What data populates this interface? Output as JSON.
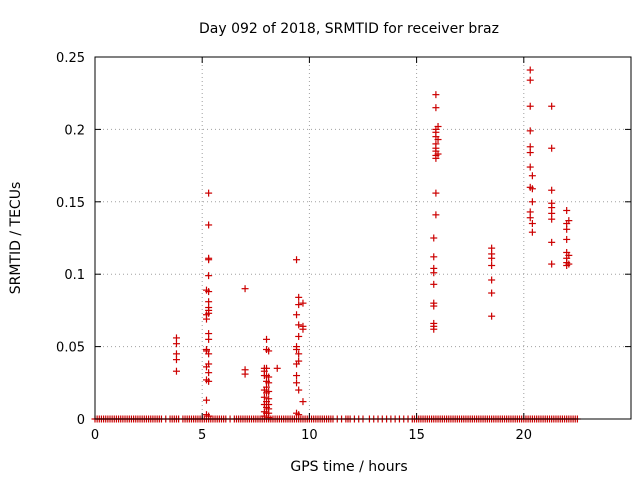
{
  "chart_data": {
    "type": "scatter",
    "title": "Day 092 of 2018, SRMTID for receiver braz",
    "xlabel": "GPS time / hours",
    "ylabel": "SRMTID / TECUs",
    "xlim": [
      0,
      25
    ],
    "ylim": [
      0,
      0.25
    ],
    "grid": true,
    "marker": "+",
    "color": "#cc0000",
    "x_ticks": [
      0,
      5,
      10,
      15,
      20
    ],
    "x_tick_labels": [
      "0",
      "5",
      "10",
      "15",
      "20"
    ],
    "y_ticks": [
      0,
      0.05,
      0.1,
      0.15,
      0.2,
      0.25
    ],
    "y_tick_labels": [
      "0",
      "0.05",
      "0.1",
      "0.15",
      "0.2",
      "0.25"
    ],
    "series": [
      {
        "name": "braz",
        "points": [
          [
            3.8,
            0.056
          ],
          [
            3.8,
            0.052
          ],
          [
            3.8,
            0.045
          ],
          [
            3.8,
            0.041
          ],
          [
            3.8,
            0.033
          ],
          [
            5.2,
            0.089
          ],
          [
            5.2,
            0.072
          ],
          [
            5.2,
            0.069
          ],
          [
            5.2,
            0.048
          ],
          [
            5.2,
            0.047
          ],
          [
            5.2,
            0.036
          ],
          [
            5.2,
            0.027
          ],
          [
            5.2,
            0.013
          ],
          [
            5.2,
            0.003
          ],
          [
            5.3,
            0.156
          ],
          [
            5.3,
            0.134
          ],
          [
            5.3,
            0.111
          ],
          [
            5.3,
            0.11
          ],
          [
            5.3,
            0.099
          ],
          [
            5.3,
            0.088
          ],
          [
            5.3,
            0.081
          ],
          [
            5.3,
            0.077
          ],
          [
            5.3,
            0.075
          ],
          [
            5.3,
            0.073
          ],
          [
            5.3,
            0.059
          ],
          [
            5.3,
            0.055
          ],
          [
            5.3,
            0.045
          ],
          [
            5.3,
            0.038
          ],
          [
            5.3,
            0.032
          ],
          [
            5.3,
            0.026
          ],
          [
            5.3,
            0.002
          ],
          [
            7.0,
            0.09
          ],
          [
            7.0,
            0.034
          ],
          [
            7.0,
            0.031
          ],
          [
            7.9,
            0.035
          ],
          [
            7.9,
            0.033
          ],
          [
            7.9,
            0.03
          ],
          [
            7.9,
            0.02
          ],
          [
            7.9,
            0.015
          ],
          [
            7.9,
            0.01
          ],
          [
            7.9,
            0.005
          ],
          [
            7.9,
            0.002
          ],
          [
            8.0,
            0.055
          ],
          [
            8.0,
            0.048
          ],
          [
            8.0,
            0.035
          ],
          [
            8.0,
            0.03
          ],
          [
            8.0,
            0.026
          ],
          [
            8.0,
            0.022
          ],
          [
            8.0,
            0.018
          ],
          [
            8.0,
            0.012
          ],
          [
            8.0,
            0.008
          ],
          [
            8.0,
            0.004
          ],
          [
            8.1,
            0.047
          ],
          [
            8.1,
            0.029
          ],
          [
            8.1,
            0.025
          ],
          [
            8.1,
            0.019
          ],
          [
            8.1,
            0.014
          ],
          [
            8.1,
            0.01
          ],
          [
            8.1,
            0.007
          ],
          [
            8.1,
            0.004
          ],
          [
            8.1,
            0.001
          ],
          [
            8.5,
            0.035
          ],
          [
            9.4,
            0.11
          ],
          [
            9.4,
            0.072
          ],
          [
            9.4,
            0.05
          ],
          [
            9.4,
            0.048
          ],
          [
            9.4,
            0.038
          ],
          [
            9.4,
            0.03
          ],
          [
            9.4,
            0.025
          ],
          [
            9.4,
            0.004
          ],
          [
            9.5,
            0.084
          ],
          [
            9.5,
            0.079
          ],
          [
            9.5,
            0.065
          ],
          [
            9.5,
            0.057
          ],
          [
            9.5,
            0.045
          ],
          [
            9.5,
            0.04
          ],
          [
            9.5,
            0.02
          ],
          [
            9.5,
            0.003
          ],
          [
            9.7,
            0.08
          ],
          [
            9.7,
            0.064
          ],
          [
            9.7,
            0.062
          ],
          [
            9.7,
            0.012
          ],
          [
            15.8,
            0.125
          ],
          [
            15.8,
            0.112
          ],
          [
            15.8,
            0.104
          ],
          [
            15.8,
            0.101
          ],
          [
            15.8,
            0.093
          ],
          [
            15.8,
            0.08
          ],
          [
            15.8,
            0.078
          ],
          [
            15.8,
            0.066
          ],
          [
            15.8,
            0.064
          ],
          [
            15.8,
            0.062
          ],
          [
            15.9,
            0.224
          ],
          [
            15.9,
            0.215
          ],
          [
            15.9,
            0.2
          ],
          [
            15.9,
            0.198
          ],
          [
            15.9,
            0.195
          ],
          [
            15.9,
            0.19
          ],
          [
            15.9,
            0.187
          ],
          [
            15.9,
            0.185
          ],
          [
            15.9,
            0.182
          ],
          [
            15.9,
            0.18
          ],
          [
            15.9,
            0.156
          ],
          [
            15.9,
            0.141
          ],
          [
            16.0,
            0.202
          ],
          [
            16.0,
            0.193
          ],
          [
            16.0,
            0.183
          ],
          [
            18.5,
            0.118
          ],
          [
            18.5,
            0.114
          ],
          [
            18.5,
            0.111
          ],
          [
            18.5,
            0.106
          ],
          [
            18.5,
            0.096
          ],
          [
            18.5,
            0.087
          ],
          [
            18.5,
            0.071
          ],
          [
            20.3,
            0.241
          ],
          [
            20.3,
            0.234
          ],
          [
            20.3,
            0.216
          ],
          [
            20.3,
            0.199
          ],
          [
            20.3,
            0.188
          ],
          [
            20.3,
            0.184
          ],
          [
            20.3,
            0.174
          ],
          [
            20.3,
            0.16
          ],
          [
            20.3,
            0.143
          ],
          [
            20.3,
            0.139
          ],
          [
            20.4,
            0.168
          ],
          [
            20.4,
            0.159
          ],
          [
            20.4,
            0.15
          ],
          [
            20.4,
            0.135
          ],
          [
            20.4,
            0.129
          ],
          [
            21.3,
            0.216
          ],
          [
            21.3,
            0.187
          ],
          [
            21.3,
            0.158
          ],
          [
            21.3,
            0.149
          ],
          [
            21.3,
            0.146
          ],
          [
            21.3,
            0.142
          ],
          [
            21.3,
            0.138
          ],
          [
            21.3,
            0.122
          ],
          [
            21.3,
            0.107
          ],
          [
            22.0,
            0.144
          ],
          [
            22.0,
            0.135
          ],
          [
            22.0,
            0.131
          ],
          [
            22.0,
            0.124
          ],
          [
            22.0,
            0.115
          ],
          [
            22.0,
            0.111
          ],
          [
            22.0,
            0.108
          ],
          [
            22.0,
            0.106
          ],
          [
            22.1,
            0.137
          ],
          [
            22.1,
            0.113
          ],
          [
            22.1,
            0.107
          ]
        ],
        "baseline_zero_x": [
          0.0,
          0.1,
          0.2,
          0.3,
          0.4,
          0.5,
          0.6,
          0.7,
          0.8,
          0.9,
          1.0,
          1.1,
          1.2,
          1.3,
          1.4,
          1.5,
          1.6,
          1.7,
          1.8,
          1.9,
          2.0,
          2.1,
          2.2,
          2.3,
          2.4,
          2.5,
          2.6,
          2.7,
          2.8,
          2.9,
          3.0,
          3.1,
          3.3,
          3.5,
          3.6,
          3.7,
          3.8,
          3.9,
          4.1,
          4.2,
          4.3,
          4.4,
          4.5,
          4.6,
          4.7,
          4.8,
          4.9,
          5.0,
          5.1,
          5.2,
          5.3,
          5.4,
          5.5,
          5.6,
          5.7,
          5.8,
          5.9,
          6.0,
          6.1,
          6.3,
          6.5,
          6.6,
          6.7,
          6.8,
          6.9,
          7.0,
          7.1,
          7.2,
          7.3,
          7.4,
          7.5,
          7.6,
          7.7,
          7.8,
          7.9,
          8.0,
          8.1,
          8.2,
          8.3,
          8.4,
          8.5,
          8.6,
          8.7,
          8.8,
          8.9,
          9.0,
          9.1,
          9.2,
          9.3,
          9.4,
          9.5,
          9.6,
          9.7,
          9.8,
          9.9,
          10.0,
          10.1,
          10.2,
          10.3,
          10.4,
          10.5,
          10.6,
          10.7,
          10.8,
          10.9,
          11.0,
          11.1,
          11.3,
          11.5,
          11.7,
          11.8,
          11.9,
          12.1,
          12.3,
          12.5,
          12.8,
          13.0,
          13.2,
          13.4,
          13.6,
          13.8,
          14.0,
          14.2,
          14.4,
          14.6,
          14.8,
          14.9,
          15.0,
          15.1,
          15.2,
          15.3,
          15.4,
          15.5,
          15.6,
          15.7,
          15.8,
          15.9,
          16.0,
          16.1,
          16.2,
          16.3,
          16.4,
          16.5,
          16.6,
          16.7,
          16.8,
          16.9,
          17.0,
          17.1,
          17.2,
          17.3,
          17.4,
          17.5,
          17.6,
          17.7,
          17.8,
          17.9,
          18.0,
          18.1,
          18.2,
          18.3,
          18.4,
          18.5,
          18.6,
          18.7,
          18.8,
          18.9,
          19.0,
          19.1,
          19.2,
          19.3,
          19.4,
          19.5,
          19.6,
          19.7,
          19.8,
          19.9,
          20.0,
          20.1,
          20.2,
          20.3,
          20.4,
          20.5,
          20.6,
          20.7,
          20.8,
          20.9,
          21.0,
          21.1,
          21.2,
          21.3,
          21.4,
          21.5,
          21.6,
          21.7,
          21.8,
          21.9,
          22.0,
          22.1,
          22.2,
          22.3,
          22.4,
          22.5
        ]
      }
    ]
  }
}
